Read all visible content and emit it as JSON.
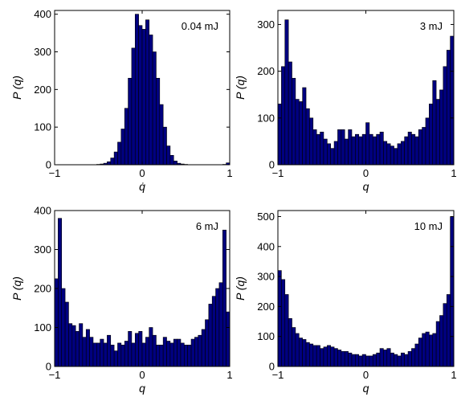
{
  "chart_data": [
    {
      "type": "bar",
      "annotation": "0.04 mJ",
      "xlabel": "q̇",
      "ylabel": "P (q)",
      "xlim": [
        -1,
        1
      ],
      "ylim": [
        0,
        410
      ],
      "xticks": [
        -1,
        0,
        1
      ],
      "yticks": [
        0,
        100,
        200,
        300,
        400
      ],
      "bins": [
        -0.98,
        -0.94,
        -0.9,
        -0.86,
        -0.82,
        -0.78,
        -0.74,
        -0.7,
        -0.66,
        -0.62,
        -0.58,
        -0.54,
        -0.5,
        -0.46,
        -0.42,
        -0.38,
        -0.34,
        -0.3,
        -0.26,
        -0.22,
        -0.18,
        -0.14,
        -0.1,
        -0.06,
        -0.02,
        0.02,
        0.06,
        0.1,
        0.14,
        0.18,
        0.22,
        0.26,
        0.3,
        0.34,
        0.38,
        0.42,
        0.46,
        0.5,
        0.54,
        0.58,
        0.62,
        0.66,
        0.7,
        0.74,
        0.78,
        0.82,
        0.86,
        0.9,
        0.94,
        0.98
      ],
      "values": [
        0,
        0,
        0,
        0,
        0,
        0,
        0,
        0,
        0,
        0,
        0,
        0,
        1,
        2,
        4,
        8,
        18,
        34,
        60,
        95,
        150,
        230,
        310,
        400,
        370,
        360,
        385,
        345,
        300,
        230,
        160,
        100,
        50,
        25,
        10,
        4,
        2,
        1,
        0,
        0,
        0,
        0,
        0,
        0,
        0,
        0,
        0,
        0,
        1,
        5
      ]
    },
    {
      "type": "bar",
      "annotation": "3 mJ",
      "xlabel": "q",
      "ylabel": "P (q)",
      "xlim": [
        -1,
        1
      ],
      "ylim": [
        0,
        330
      ],
      "xticks": [
        -1,
        0,
        1
      ],
      "yticks": [
        0,
        100,
        200,
        300
      ],
      "bins": [
        -0.98,
        -0.94,
        -0.9,
        -0.86,
        -0.82,
        -0.78,
        -0.74,
        -0.7,
        -0.66,
        -0.62,
        -0.58,
        -0.54,
        -0.5,
        -0.46,
        -0.42,
        -0.38,
        -0.34,
        -0.3,
        -0.26,
        -0.22,
        -0.18,
        -0.14,
        -0.1,
        -0.06,
        -0.02,
        0.02,
        0.06,
        0.1,
        0.14,
        0.18,
        0.22,
        0.26,
        0.3,
        0.34,
        0.38,
        0.42,
        0.46,
        0.5,
        0.54,
        0.58,
        0.62,
        0.66,
        0.7,
        0.74,
        0.78,
        0.82,
        0.86,
        0.9,
        0.94,
        0.98
      ],
      "values": [
        130,
        210,
        310,
        220,
        185,
        140,
        135,
        165,
        120,
        100,
        75,
        65,
        70,
        55,
        45,
        35,
        50,
        75,
        75,
        55,
        75,
        60,
        65,
        60,
        65,
        90,
        65,
        60,
        65,
        70,
        50,
        45,
        40,
        35,
        45,
        50,
        60,
        70,
        65,
        60,
        75,
        80,
        100,
        130,
        180,
        140,
        160,
        210,
        245,
        275
      ]
    },
    {
      "type": "bar",
      "annotation": "6 mJ",
      "xlabel": "q",
      "ylabel": "P (q)",
      "xlim": [
        -1,
        1
      ],
      "ylim": [
        0,
        400
      ],
      "xticks": [
        -1,
        0,
        1
      ],
      "yticks": [
        0,
        100,
        200,
        300,
        400
      ],
      "bins": [
        -0.98,
        -0.94,
        -0.9,
        -0.86,
        -0.82,
        -0.78,
        -0.74,
        -0.7,
        -0.66,
        -0.62,
        -0.58,
        -0.54,
        -0.5,
        -0.46,
        -0.42,
        -0.38,
        -0.34,
        -0.3,
        -0.26,
        -0.22,
        -0.18,
        -0.14,
        -0.1,
        -0.06,
        -0.02,
        0.02,
        0.06,
        0.1,
        0.14,
        0.18,
        0.22,
        0.26,
        0.3,
        0.34,
        0.38,
        0.42,
        0.46,
        0.5,
        0.54,
        0.58,
        0.62,
        0.66,
        0.7,
        0.74,
        0.78,
        0.82,
        0.86,
        0.9,
        0.94,
        0.98
      ],
      "values": [
        225,
        380,
        200,
        165,
        110,
        105,
        90,
        110,
        75,
        95,
        75,
        60,
        60,
        70,
        60,
        80,
        55,
        40,
        60,
        55,
        65,
        90,
        60,
        85,
        90,
        60,
        75,
        100,
        80,
        55,
        55,
        75,
        65,
        60,
        70,
        70,
        60,
        55,
        55,
        70,
        75,
        80,
        95,
        120,
        160,
        180,
        200,
        215,
        350,
        140
      ]
    },
    {
      "type": "bar",
      "annotation": "10 mJ",
      "xlabel": "q",
      "ylabel": "P (q)",
      "xlim": [
        -1,
        1
      ],
      "ylim": [
        0,
        520
      ],
      "xticks": [
        -1,
        0,
        1
      ],
      "yticks": [
        0,
        100,
        200,
        300,
        400,
        500
      ],
      "bins": [
        -0.98,
        -0.94,
        -0.9,
        -0.86,
        -0.82,
        -0.78,
        -0.74,
        -0.7,
        -0.66,
        -0.62,
        -0.58,
        -0.54,
        -0.5,
        -0.46,
        -0.42,
        -0.38,
        -0.34,
        -0.3,
        -0.26,
        -0.22,
        -0.18,
        -0.14,
        -0.1,
        -0.06,
        -0.02,
        0.02,
        0.06,
        0.1,
        0.14,
        0.18,
        0.22,
        0.26,
        0.3,
        0.34,
        0.38,
        0.42,
        0.46,
        0.5,
        0.54,
        0.58,
        0.62,
        0.66,
        0.7,
        0.74,
        0.78,
        0.82,
        0.86,
        0.9,
        0.94,
        0.98
      ],
      "values": [
        320,
        290,
        240,
        160,
        130,
        110,
        95,
        90,
        80,
        75,
        70,
        70,
        60,
        65,
        70,
        65,
        60,
        55,
        50,
        50,
        45,
        40,
        40,
        35,
        40,
        35,
        35,
        40,
        45,
        60,
        55,
        60,
        45,
        40,
        35,
        45,
        40,
        50,
        60,
        75,
        95,
        110,
        115,
        105,
        110,
        150,
        170,
        210,
        240,
        500
      ]
    }
  ]
}
